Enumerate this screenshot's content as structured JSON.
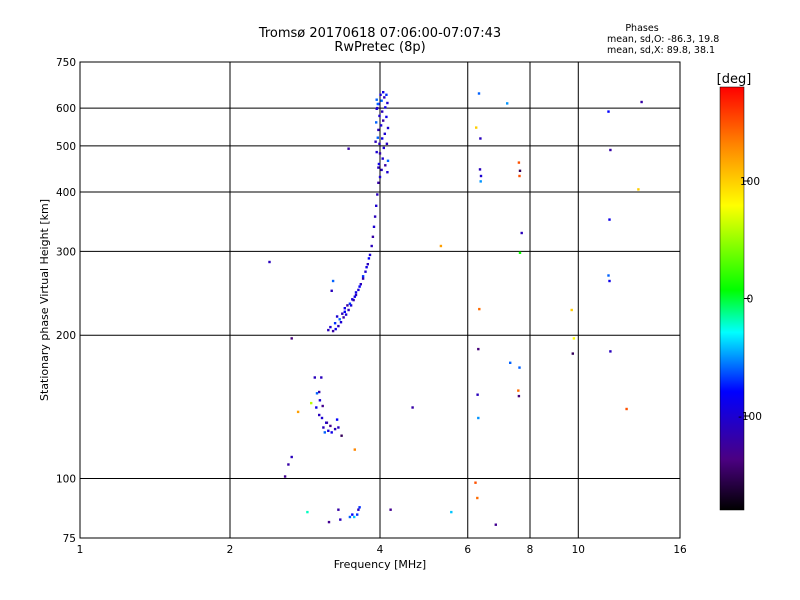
{
  "chart_data": {
    "type": "scatter",
    "title": "Tromsø 20170618 07:06:00-07:07:43",
    "subtitle": "RwPretec (8p)",
    "phases_box": {
      "heading": "Phases",
      "line_o": "mean, sd,O: -86.3, 19.8",
      "line_x": "mean, sd,X:  89.8, 38.1"
    },
    "xlabel": "Frequency [MHz]",
    "ylabel": "Stationary phase Virtual Height [km]",
    "xscale": "log2",
    "yscale": "log",
    "xlim": [
      1,
      16
    ],
    "ylim": [
      75,
      750
    ],
    "xticks": [
      {
        "v": 1,
        "label": "1"
      },
      {
        "v": 2,
        "label": "2"
      },
      {
        "v": 4,
        "label": "4"
      },
      {
        "v": 6,
        "label": "6"
      },
      {
        "v": 8,
        "label": "8"
      },
      {
        "v": 10,
        "label": "10"
      },
      {
        "v": 16,
        "label": "16"
      }
    ],
    "yticks": [
      {
        "v": 75,
        "label": "75"
      },
      {
        "v": 100,
        "label": "100"
      },
      {
        "v": 200,
        "label": "200"
      },
      {
        "v": 300,
        "label": "300"
      },
      {
        "v": 400,
        "label": "400"
      },
      {
        "v": 500,
        "label": "500"
      },
      {
        "v": 600,
        "label": "600"
      },
      {
        "v": 750,
        "label": "750"
      }
    ],
    "colorbar": {
      "label": "[deg]",
      "range": [
        -180,
        180
      ],
      "ticks": [
        {
          "v": 100,
          "label": "100"
        },
        {
          "v": 0,
          "label": "0"
        },
        {
          "v": -100,
          "label": "-100"
        }
      ]
    },
    "grid": true,
    "points_columns": [
      "freq_mhz",
      "height_km",
      "phase_deg"
    ],
    "points": [
      [
        2.4,
        285,
        -110
      ],
      [
        2.66,
        197,
        -140
      ],
      [
        2.66,
        111,
        -110
      ],
      [
        2.62,
        107,
        -120
      ],
      [
        2.58,
        101,
        -130
      ],
      [
        2.74,
        138,
        120
      ],
      [
        2.86,
        85,
        -20
      ],
      [
        2.91,
        144,
        60
      ],
      [
        2.96,
        163,
        -110
      ],
      [
        3.05,
        163,
        -110
      ],
      [
        3.02,
        152,
        -120
      ],
      [
        2.99,
        151,
        -60
      ],
      [
        3.03,
        146,
        -100
      ],
      [
        3.07,
        142,
        -130
      ],
      [
        2.98,
        141,
        -90
      ],
      [
        3.02,
        136,
        -110
      ],
      [
        3.06,
        134,
        -100
      ],
      [
        3.12,
        131,
        -90
      ],
      [
        3.08,
        128,
        -110
      ],
      [
        3.15,
        126,
        -100
      ],
      [
        3.2,
        125,
        -90
      ],
      [
        3.25,
        127,
        -110
      ],
      [
        3.18,
        129,
        -130
      ],
      [
        3.13,
        131,
        -120
      ],
      [
        3.28,
        133,
        -80
      ],
      [
        3.3,
        128,
        -110
      ],
      [
        3.1,
        125,
        -60
      ],
      [
        3.35,
        123,
        -150
      ],
      [
        3.56,
        115,
        130
      ],
      [
        3.3,
        86,
        -120
      ],
      [
        3.16,
        81,
        -130
      ],
      [
        3.33,
        82,
        -110
      ],
      [
        3.48,
        83,
        -60
      ],
      [
        3.52,
        84,
        -80
      ],
      [
        3.55,
        83,
        -40
      ],
      [
        3.6,
        84,
        -70
      ],
      [
        3.62,
        86,
        -110
      ],
      [
        3.64,
        87,
        -70
      ],
      [
        3.15,
        205,
        -110
      ],
      [
        3.18,
        208,
        -100
      ],
      [
        3.22,
        204,
        -120
      ],
      [
        3.26,
        206,
        -90
      ],
      [
        3.3,
        209,
        -110
      ],
      [
        3.34,
        213,
        -100
      ],
      [
        3.38,
        218,
        -120
      ],
      [
        3.42,
        221,
        -100
      ],
      [
        3.46,
        226,
        -110
      ],
      [
        3.5,
        231,
        -100
      ],
      [
        3.54,
        237,
        -120
      ],
      [
        3.58,
        243,
        -110
      ],
      [
        3.62,
        249,
        -100
      ],
      [
        3.66,
        256,
        -110
      ],
      [
        3.7,
        263,
        -120
      ],
      [
        3.74,
        272,
        -100
      ],
      [
        3.78,
        282,
        -110
      ],
      [
        3.82,
        295,
        -100
      ],
      [
        3.85,
        308,
        -110
      ],
      [
        3.87,
        322,
        -120
      ],
      [
        3.89,
        338,
        -100
      ],
      [
        3.91,
        355,
        -110
      ],
      [
        3.93,
        374,
        -100
      ],
      [
        3.95,
        395,
        -110
      ],
      [
        3.97,
        418,
        -120
      ],
      [
        3.25,
        212,
        -70
      ],
      [
        3.32,
        216,
        -60
      ],
      [
        3.4,
        224,
        -80
      ],
      [
        3.48,
        233,
        -70
      ],
      [
        3.56,
        241,
        -90
      ],
      [
        3.64,
        253,
        -80
      ],
      [
        3.7,
        266,
        -70
      ],
      [
        3.76,
        278,
        -90
      ],
      [
        3.8,
        290,
        -80
      ],
      [
        3.2,
        248,
        -110
      ],
      [
        3.22,
        260,
        -60
      ],
      [
        3.46,
        493,
        -120
      ],
      [
        5.3,
        308,
        120
      ],
      [
        3.4,
        228,
        -90
      ],
      [
        3.58,
        246,
        -90
      ],
      [
        3.28,
        219,
        -100
      ],
      [
        3.36,
        222,
        -110
      ],
      [
        3.44,
        231,
        -120
      ],
      [
        3.52,
        238,
        -100
      ],
      [
        4.0,
        430,
        -100
      ],
      [
        4.03,
        445,
        -110
      ],
      [
        3.98,
        458,
        -90
      ],
      [
        4.05,
        470,
        -100
      ],
      [
        4.0,
        482,
        -120
      ],
      [
        4.07,
        495,
        -100
      ],
      [
        3.99,
        505,
        -110
      ],
      [
        4.04,
        518,
        -90
      ],
      [
        4.09,
        530,
        -100
      ],
      [
        3.97,
        540,
        -110
      ],
      [
        4.02,
        552,
        -100
      ],
      [
        4.06,
        565,
        -120
      ],
      [
        3.99,
        578,
        -100
      ],
      [
        4.04,
        590,
        -110
      ],
      [
        4.1,
        602,
        -90
      ],
      [
        3.98,
        612,
        -100
      ],
      [
        4.03,
        622,
        -60
      ],
      [
        4.08,
        632,
        -110
      ],
      [
        4.01,
        640,
        -100
      ],
      [
        4.06,
        648,
        -90
      ],
      [
        4.12,
        640,
        -70
      ],
      [
        3.94,
        625,
        -60
      ],
      [
        4.14,
        615,
        -100
      ],
      [
        3.95,
        600,
        -110
      ],
      [
        4.12,
        575,
        -90
      ],
      [
        3.93,
        560,
        -60
      ],
      [
        4.15,
        545,
        -100
      ],
      [
        3.96,
        520,
        -60
      ],
      [
        4.13,
        505,
        -110
      ],
      [
        3.94,
        485,
        -100
      ],
      [
        4.15,
        465,
        -60
      ],
      [
        3.97,
        450,
        -110
      ],
      [
        4.14,
        440,
        -100
      ],
      [
        3.92,
        510,
        -110
      ],
      [
        4.1,
        455,
        -120
      ],
      [
        3.94,
        598,
        -100
      ],
      [
        3.96,
        612,
        -60
      ],
      [
        4.2,
        86,
        -130
      ],
      [
        4.65,
        141,
        -120
      ],
      [
        5.56,
        85,
        -40
      ],
      [
        6.32,
        644,
        -60
      ],
      [
        6.24,
        546,
        100
      ],
      [
        6.36,
        518,
        -110
      ],
      [
        6.35,
        446,
        -110
      ],
      [
        6.38,
        432,
        -100
      ],
      [
        6.37,
        421,
        -50
      ],
      [
        6.33,
        227,
        140
      ],
      [
        6.3,
        187,
        -140
      ],
      [
        6.28,
        150,
        -110
      ],
      [
        6.3,
        134,
        -50
      ],
      [
        6.22,
        98,
        150
      ],
      [
        6.27,
        91,
        140
      ],
      [
        6.83,
        80,
        -130
      ],
      [
        7.2,
        614,
        -50
      ],
      [
        7.3,
        175,
        -60
      ],
      [
        7.6,
        461,
        150
      ],
      [
        7.64,
        443,
        -150
      ],
      [
        7.62,
        432,
        150
      ],
      [
        7.7,
        328,
        -110
      ],
      [
        7.64,
        298,
        10
      ],
      [
        7.62,
        171,
        -60
      ],
      [
        7.58,
        153,
        140
      ],
      [
        7.6,
        149,
        -140
      ],
      [
        9.7,
        226,
        100
      ],
      [
        9.8,
        197,
        80
      ],
      [
        9.75,
        183,
        -150
      ],
      [
        11.5,
        590,
        -80
      ],
      [
        11.6,
        490,
        -120
      ],
      [
        11.55,
        350,
        -90
      ],
      [
        11.5,
        267,
        -60
      ],
      [
        11.55,
        260,
        -90
      ],
      [
        11.6,
        185,
        -110
      ],
      [
        12.5,
        140,
        150
      ],
      [
        13.2,
        405,
        100
      ],
      [
        13.4,
        618,
        -120
      ]
    ]
  }
}
